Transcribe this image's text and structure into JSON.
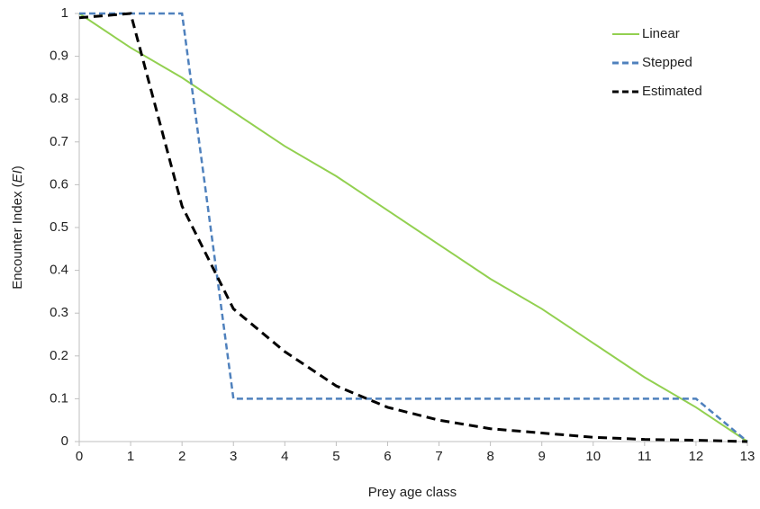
{
  "chart_data": {
    "type": "line",
    "xlabel": "Prey age class",
    "ylabel": [
      "Encounter Index (",
      "EI",
      ")"
    ],
    "x": [
      0,
      1,
      2,
      3,
      4,
      5,
      6,
      7,
      8,
      9,
      10,
      11,
      12,
      13
    ],
    "xlim": [
      0,
      13
    ],
    "xticks": [
      0,
      1,
      2,
      3,
      4,
      5,
      6,
      7,
      8,
      9,
      10,
      11,
      12,
      13
    ],
    "ylim": [
      0,
      1
    ],
    "yticks": [
      0,
      0.1,
      0.2,
      0.3,
      0.4,
      0.5,
      0.6,
      0.7,
      0.8,
      0.9,
      1
    ],
    "grid": false,
    "legend": "top-right",
    "series": [
      {
        "name": "Linear",
        "color": "#92d050",
        "dash": "solid",
        "values": [
          1,
          0.92,
          0.85,
          0.77,
          0.69,
          0.62,
          0.54,
          0.46,
          0.38,
          0.31,
          0.23,
          0.15,
          0.08,
          0
        ]
      },
      {
        "name": "Stepped",
        "color": "#4f81bd",
        "dash": "dashed",
        "values": [
          1,
          1,
          1,
          0.1,
          0.1,
          0.1,
          0.1,
          0.1,
          0.1,
          0.1,
          0.1,
          0.1,
          0.1,
          0
        ]
      },
      {
        "name": "Estimated",
        "color": "#000000",
        "dash": "dashed",
        "values": [
          0.99,
          1,
          0.55,
          0.31,
          0.21,
          0.13,
          0.08,
          0.05,
          0.03,
          0.02,
          0.01,
          0.005,
          0.003,
          0
        ]
      }
    ]
  }
}
